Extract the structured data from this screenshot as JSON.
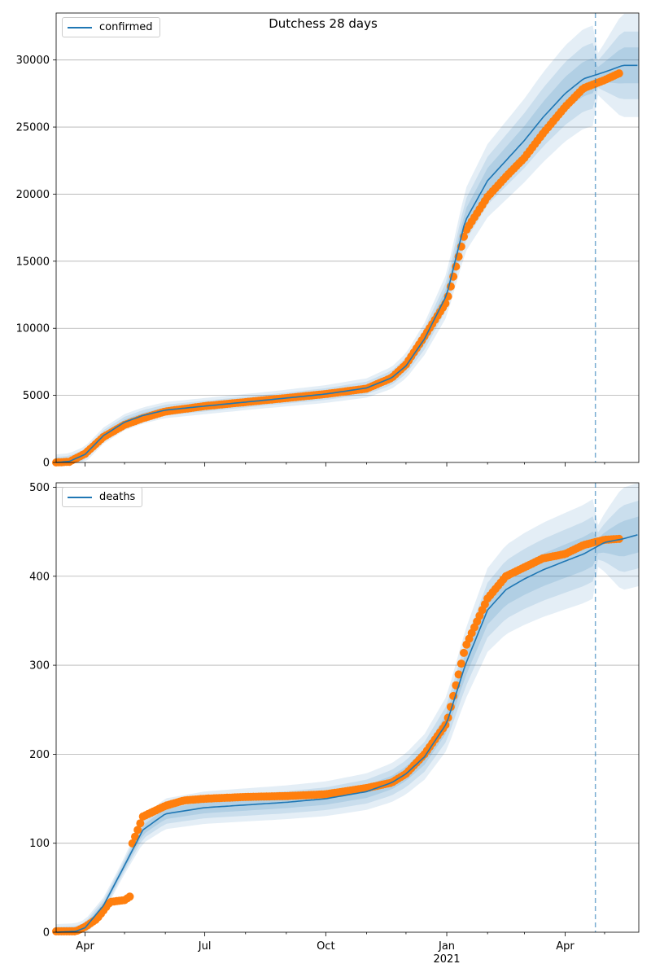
{
  "figure": {
    "title": "Dutchess 28 days"
  },
  "chart_data": [
    {
      "type": "line",
      "series": [
        {
          "name": "confirmed",
          "role": "model line with 50/80/95% bands",
          "color": "#1f77b4",
          "x": [
            "2020-03-10",
            "2020-03-20",
            "2020-04-01",
            "2020-04-15",
            "2020-05-01",
            "2020-05-15",
            "2020-06-01",
            "2020-07-01",
            "2020-08-01",
            "2020-09-01",
            "2020-10-01",
            "2020-11-01",
            "2020-11-20",
            "2020-12-01",
            "2020-12-15",
            "2021-01-01",
            "2021-01-15",
            "2021-02-01",
            "2021-02-15",
            "2021-03-01",
            "2021-03-15",
            "2021-04-01",
            "2021-04-15",
            "2021-05-01",
            "2021-05-15"
          ],
          "y": [
            0,
            80,
            600,
            2000,
            3000,
            3500,
            3900,
            4200,
            4500,
            4800,
            5100,
            5550,
            6300,
            7200,
            9200,
            12500,
            18000,
            21000,
            22500,
            24000,
            25700,
            27500,
            28600,
            29100,
            29600
          ]
        },
        {
          "name": "",
          "role": "observed",
          "color": "#ff7f0e",
          "x": [
            "2020-03-10",
            "2020-03-20",
            "2020-04-01",
            "2020-04-15",
            "2020-05-01",
            "2020-05-15",
            "2020-06-01",
            "2020-07-01",
            "2020-08-01",
            "2020-09-01",
            "2020-10-01",
            "2020-11-01",
            "2020-11-20",
            "2020-12-01",
            "2020-12-15",
            "2021-01-01",
            "2021-01-15",
            "2021-02-01",
            "2021-02-15",
            "2021-03-01",
            "2021-03-15",
            "2021-04-01",
            "2021-04-15",
            "2021-05-01",
            "2021-05-12"
          ],
          "y": [
            0,
            50,
            650,
            1900,
            2800,
            3300,
            3800,
            4200,
            4500,
            4800,
            5100,
            5500,
            6300,
            7300,
            9400,
            12000,
            17200,
            19800,
            21300,
            22700,
            24500,
            26500,
            27900,
            28500,
            29000
          ]
        }
      ],
      "bands_color": "#1f77b4",
      "forecast_start": "2021-04-24",
      "xlim": [
        "2020-03-10",
        "2021-05-27"
      ],
      "ylim": [
        0,
        33500
      ],
      "yticks": [
        0,
        5000,
        10000,
        15000,
        20000,
        25000,
        30000
      ],
      "xtick_labels": [
        {
          "date": "2020-04-01",
          "label": "Apr"
        },
        {
          "date": "2020-07-01",
          "label": "Jul"
        },
        {
          "date": "2020-10-01",
          "label": "Oct"
        },
        {
          "date": "2021-01-01",
          "label": "Jan",
          "sublabel": "2021"
        },
        {
          "date": "2021-04-01",
          "label": "Apr"
        }
      ],
      "grid": "horizontal",
      "legend": "top-left"
    },
    {
      "type": "line",
      "series": [
        {
          "name": "deaths",
          "role": "model line with 50/80/95% bands",
          "color": "#1f77b4",
          "x": [
            "2020-03-10",
            "2020-03-25",
            "2020-04-01",
            "2020-04-15",
            "2020-05-01",
            "2020-05-15",
            "2020-06-01",
            "2020-07-01",
            "2020-08-01",
            "2020-09-01",
            "2020-10-01",
            "2020-11-01",
            "2020-11-20",
            "2020-12-01",
            "2020-12-15",
            "2021-01-01",
            "2021-01-15",
            "2021-02-01",
            "2021-02-15",
            "2021-03-01",
            "2021-03-15",
            "2021-04-01",
            "2021-04-15",
            "2021-05-01",
            "2021-05-15",
            "2021-05-27"
          ],
          "y": [
            0,
            1,
            5,
            30,
            75,
            115,
            133,
            140,
            143,
            146,
            150,
            158,
            168,
            178,
            197,
            235,
            300,
            362,
            385,
            397,
            407,
            417,
            425,
            438,
            442,
            447
          ]
        },
        {
          "name": "",
          "role": "observed",
          "color": "#ff7f0e",
          "x": [
            "2020-03-10",
            "2020-03-25",
            "2020-04-01",
            "2020-04-10",
            "2020-04-20",
            "2020-05-01",
            "2020-05-05",
            "2020-05-06",
            "2020-05-15",
            "2020-06-01",
            "2020-06-15",
            "2020-07-01",
            "2020-08-01",
            "2020-09-01",
            "2020-10-01",
            "2020-11-01",
            "2020-11-20",
            "2020-12-01",
            "2020-12-15",
            "2021-01-01",
            "2021-01-15",
            "2021-02-01",
            "2021-02-15",
            "2021-03-01",
            "2021-03-15",
            "2021-04-01",
            "2021-04-15",
            "2021-05-01",
            "2021-05-12"
          ],
          "y": [
            1,
            1,
            6,
            15,
            34,
            36,
            40,
            96,
            130,
            142,
            148,
            150,
            152,
            153,
            155,
            162,
            168,
            178,
            200,
            235,
            320,
            375,
            400,
            410,
            420,
            425,
            435,
            441,
            442
          ]
        }
      ],
      "bands_color": "#1f77b4",
      "forecast_start": "2021-04-24",
      "xlim": [
        "2020-03-10",
        "2021-05-27"
      ],
      "ylim": [
        0,
        505
      ],
      "yticks": [
        0,
        100,
        200,
        300,
        400,
        500
      ],
      "xtick_labels": [
        {
          "date": "2020-04-01",
          "label": "Apr"
        },
        {
          "date": "2020-07-01",
          "label": "Jul"
        },
        {
          "date": "2020-10-01",
          "label": "Oct"
        },
        {
          "date": "2021-01-01",
          "label": "Jan",
          "sublabel": "2021"
        },
        {
          "date": "2021-04-01",
          "label": "Apr"
        }
      ],
      "grid": "horizontal",
      "legend": "top-left"
    }
  ]
}
